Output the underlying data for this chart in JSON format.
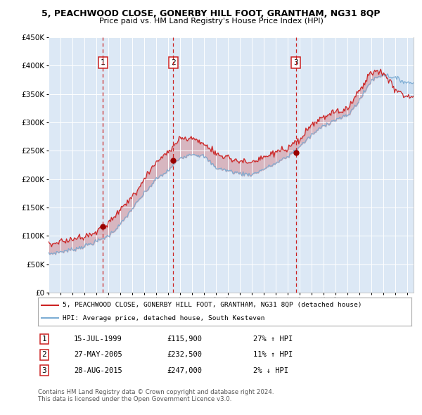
{
  "title": "5, PEACHWOOD CLOSE, GONERBY HILL FOOT, GRANTHAM, NG31 8QP",
  "subtitle": "Price paid vs. HM Land Registry's House Price Index (HPI)",
  "legend_line1": "5, PEACHWOOD CLOSE, GONERBY HILL FOOT, GRANTHAM, NG31 8QP (detached house)",
  "legend_line2": "HPI: Average price, detached house, South Kesteven",
  "footer1": "Contains HM Land Registry data © Crown copyright and database right 2024.",
  "footer2": "This data is licensed under the Open Government Licence v3.0.",
  "sales": [
    {
      "num": 1,
      "date": "15-JUL-1999",
      "price": 115900,
      "pct": "27%",
      "dir": "↑"
    },
    {
      "num": 2,
      "date": "27-MAY-2005",
      "price": 232500,
      "pct": "11%",
      "dir": "↑"
    },
    {
      "num": 3,
      "date": "28-AUG-2015",
      "price": 247000,
      "pct": "2%",
      "dir": "↓"
    }
  ],
  "sale_dates_decimal": [
    1999.54,
    2005.41,
    2015.66
  ],
  "sale_prices": [
    115900,
    232500,
    247000
  ],
  "x_start_year": 1995,
  "x_end_year": 2025,
  "y_min": 0,
  "y_max": 450000,
  "y_ticks": [
    0,
    50000,
    100000,
    150000,
    200000,
    250000,
    300000,
    350000,
    400000,
    450000
  ],
  "plot_bg_color": "#dce8f5",
  "grid_color": "#ffffff",
  "hpi_color": "#7dadd4",
  "hpi_fill_color": "#a8c8e8",
  "price_color": "#cc2222",
  "dashed_color": "#cc2222",
  "marker_color": "#990000",
  "box_color": "#cc2222",
  "hpi_anchors_t": [
    1995,
    1996,
    1997,
    1998,
    1999,
    2000,
    2001,
    2002,
    2003,
    2004,
    2005,
    2006,
    2007,
    2008,
    2009,
    2010,
    2011,
    2012,
    2013,
    2014,
    2015,
    2016,
    2017,
    2018,
    2019,
    2020,
    2021,
    2022,
    2023,
    2024,
    2025
  ],
  "hpi_anchors_v": [
    68000,
    72000,
    76000,
    82000,
    90000,
    100000,
    120000,
    148000,
    175000,
    200000,
    215000,
    238000,
    245000,
    240000,
    220000,
    215000,
    210000,
    208000,
    218000,
    228000,
    240000,
    258000,
    278000,
    295000,
    305000,
    312000,
    340000,
    375000,
    385000,
    378000,
    370000
  ],
  "price_anchors_t": [
    1995,
    1996,
    1997,
    1998,
    1999,
    2000,
    2001,
    2002,
    2003,
    2004,
    2005,
    2006,
    2007,
    2008,
    2009,
    2010,
    2011,
    2012,
    2013,
    2014,
    2015,
    2016,
    2017,
    2018,
    2019,
    2020,
    2021,
    2022,
    2023,
    2024,
    2025
  ],
  "price_anchors_v": [
    85000,
    90000,
    94000,
    100000,
    108000,
    122000,
    145000,
    170000,
    200000,
    230000,
    248000,
    272000,
    272000,
    262000,
    245000,
    238000,
    232000,
    228000,
    238000,
    248000,
    252000,
    270000,
    295000,
    310000,
    318000,
    325000,
    358000,
    390000,
    388000,
    358000,
    345000
  ],
  "noise_seed_hpi": 7,
  "noise_seed_price": 3,
  "noise_scale_hpi": 1800,
  "noise_scale_price": 2800
}
